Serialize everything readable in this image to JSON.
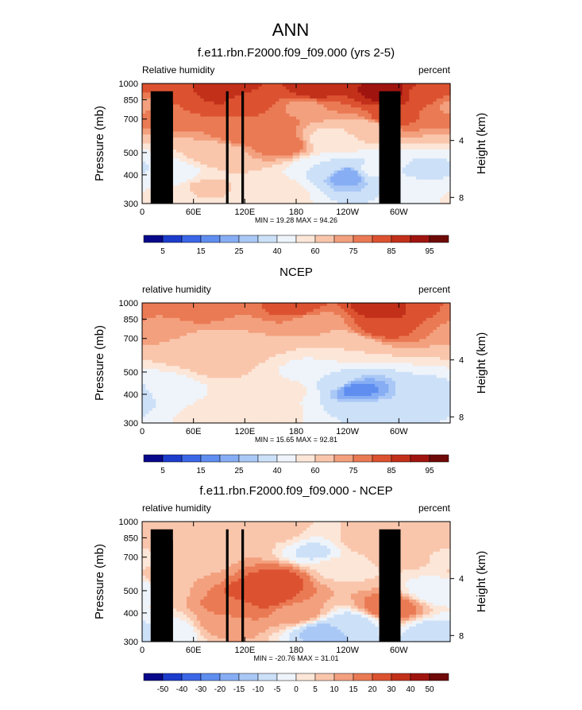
{
  "figure": {
    "title": "ANN"
  },
  "chart_data": [
    {
      "type": "heatmap",
      "title": "f.e11.rbn.F2000.f09_f09.000 (yrs 2-5)",
      "left_label": "Relative humidity",
      "right_label": "percent",
      "ylabel": "Pressure (mb)",
      "ylabel_right": "Height (km)",
      "stats_text": "MIN = 19.28  MAX = 94.26",
      "min": 19.28,
      "max": 94.26,
      "x_range": [
        0,
        360
      ],
      "y_range_mb": [
        1000,
        300
      ],
      "x_ticks": [
        {
          "lon": 0,
          "label": "0"
        },
        {
          "lon": 60,
          "label": "60E"
        },
        {
          "lon": 120,
          "label": "120E"
        },
        {
          "lon": 180,
          "label": "180"
        },
        {
          "lon": 240,
          "label": "120W"
        },
        {
          "lon": 300,
          "label": "60W"
        }
      ],
      "y_ticks": [
        {
          "p": 300,
          "label": "300"
        },
        {
          "p": 400,
          "label": "400"
        },
        {
          "p": 500,
          "label": "500"
        },
        {
          "p": 700,
          "label": "700"
        },
        {
          "p": 850,
          "label": "850"
        },
        {
          "p": 1000,
          "label": "1000"
        }
      ],
      "height_ticks": [
        {
          "km": 8,
          "label": "8"
        },
        {
          "km": 4,
          "label": "4"
        }
      ],
      "colorbar": {
        "levels": [
          5,
          10,
          15,
          20,
          25,
          30,
          40,
          50,
          60,
          70,
          75,
          80,
          85,
          90,
          95
        ],
        "labels": [
          "5",
          "15",
          "25",
          "40",
          "60",
          "75",
          "85",
          "95"
        ],
        "colors": [
          "#08088a",
          "#1c3ccc",
          "#3b66e6",
          "#5f8ef0",
          "#87aef4",
          "#aac8f6",
          "#cce0f8",
          "#eef4fa",
          "#fce6d8",
          "#f9c6ac",
          "#f3a07e",
          "#ea7a54",
          "#dc5230",
          "#c2301a",
          "#a01410",
          "#6e0a08"
        ]
      },
      "features": [
        {
          "lon": 240,
          "p": 400,
          "rh": 20
        },
        {
          "lon": 212,
          "p": 430,
          "rh": 40
        },
        {
          "lon": 268,
          "p": 420,
          "rh": 42
        },
        {
          "lon": 220,
          "p": 570,
          "rh": 55
        },
        {
          "lon": 340,
          "p": 420,
          "rh": 38
        },
        {
          "lon": 340,
          "p": 330,
          "rh": 50
        },
        {
          "lon": 35,
          "p": 400,
          "rh": 42
        },
        {
          "lon": 35,
          "p": 330,
          "rh": 52
        },
        {
          "lon": 155,
          "p": 340,
          "rh": 55
        },
        {
          "lon": 165,
          "p": 540,
          "rh": 80
        },
        {
          "lon": 145,
          "p": 640,
          "rh": 80
        },
        {
          "lon": 115,
          "p": 600,
          "rh": 78
        },
        {
          "lon": 30,
          "p": 770,
          "rh": 80
        },
        {
          "lon": 90,
          "p": 500,
          "rh": 66
        },
        {
          "lon": 70,
          "p": 350,
          "rh": 62
        },
        {
          "lon": 270,
          "p": 650,
          "rh": 66
        },
        {
          "lon": 285,
          "p": 700,
          "rh": 84
        },
        {
          "lon": 285,
          "p": 920,
          "rh": 92
        },
        {
          "lon": 200,
          "p": 930,
          "rh": 87
        },
        {
          "lon": 100,
          "p": 930,
          "rh": 88
        },
        {
          "lon": 45,
          "p": 920,
          "rh": 85
        },
        {
          "lon": 330,
          "p": 900,
          "rh": 84
        },
        {
          "lon": 120,
          "p": 860,
          "rh": 84
        },
        {
          "lon": 190,
          "p": 790,
          "rh": 74
        },
        {
          "lon": 5,
          "p": 800,
          "rh": 74
        }
      ],
      "terrain": [
        {
          "lon0": 10,
          "lon1": 36,
          "p": 925
        },
        {
          "lon0": 20,
          "lon1": 30,
          "p": 870
        },
        {
          "lon0": 28,
          "lon1": 36,
          "p": 830
        },
        {
          "lon0": 98,
          "lon1": 101,
          "p": 925
        },
        {
          "lon0": 116,
          "lon1": 119,
          "p": 925
        },
        {
          "lon0": 277,
          "lon1": 302,
          "p": 925
        }
      ]
    },
    {
      "type": "heatmap",
      "title": "NCEP",
      "left_label": "relative humidity",
      "right_label": "percent",
      "ylabel": "Pressure (mb)",
      "ylabel_right": "Height (km)",
      "stats_text": "MIN = 15.65  MAX = 92.81",
      "min": 15.65,
      "max": 92.81,
      "x_range": [
        0,
        360
      ],
      "y_range_mb": [
        1000,
        300
      ],
      "x_ticks": [
        {
          "lon": 0,
          "label": "0"
        },
        {
          "lon": 60,
          "label": "60E"
        },
        {
          "lon": 120,
          "label": "120E"
        },
        {
          "lon": 180,
          "label": "180"
        },
        {
          "lon": 240,
          "label": "120W"
        },
        {
          "lon": 300,
          "label": "60W"
        }
      ],
      "y_ticks": [
        {
          "p": 300,
          "label": "300"
        },
        {
          "p": 400,
          "label": "400"
        },
        {
          "p": 500,
          "label": "500"
        },
        {
          "p": 700,
          "label": "700"
        },
        {
          "p": 850,
          "label": "850"
        },
        {
          "p": 1000,
          "label": "1000"
        }
      ],
      "height_ticks": [
        {
          "km": 8,
          "label": "8"
        },
        {
          "km": 4,
          "label": "4"
        }
      ],
      "colorbar": {
        "levels": [
          5,
          10,
          15,
          20,
          25,
          30,
          40,
          50,
          60,
          70,
          75,
          80,
          85,
          90,
          95
        ],
        "labels": [
          "5",
          "15",
          "25",
          "40",
          "60",
          "75",
          "85",
          "95"
        ],
        "colors": [
          "#08088a",
          "#1c3ccc",
          "#3b66e6",
          "#5f8ef0",
          "#87aef4",
          "#aac8f6",
          "#cce0f8",
          "#eef4fa",
          "#fce6d8",
          "#f9c6ac",
          "#f3a07e",
          "#ea7a54",
          "#dc5230",
          "#c2301a",
          "#a01410",
          "#6e0a08"
        ]
      },
      "features": [
        {
          "lon": 250,
          "p": 420,
          "rh": 18
        },
        {
          "lon": 225,
          "p": 460,
          "rh": 36
        },
        {
          "lon": 255,
          "p": 330,
          "rh": 40
        },
        {
          "lon": 200,
          "p": 500,
          "rh": 48
        },
        {
          "lon": 170,
          "p": 420,
          "rh": 52
        },
        {
          "lon": 345,
          "p": 400,
          "rh": 35
        },
        {
          "lon": 30,
          "p": 420,
          "rh": 44
        },
        {
          "lon": 100,
          "p": 330,
          "rh": 58
        },
        {
          "lon": 140,
          "p": 340,
          "rh": 56
        },
        {
          "lon": 90,
          "p": 550,
          "rh": 64
        },
        {
          "lon": 60,
          "p": 640,
          "rh": 66
        },
        {
          "lon": 25,
          "p": 760,
          "rh": 72
        },
        {
          "lon": 120,
          "p": 700,
          "rh": 70
        },
        {
          "lon": 280,
          "p": 780,
          "rh": 82
        },
        {
          "lon": 285,
          "p": 950,
          "rh": 90
        },
        {
          "lon": 180,
          "p": 950,
          "rh": 82
        },
        {
          "lon": 60,
          "p": 960,
          "rh": 80
        },
        {
          "lon": 330,
          "p": 950,
          "rh": 80
        },
        {
          "lon": 200,
          "p": 820,
          "rh": 72
        },
        {
          "lon": 240,
          "p": 650,
          "rh": 60
        }
      ],
      "terrain": []
    },
    {
      "type": "heatmap",
      "title": "f.e11.rbn.F2000.f09_f09.000 - NCEP",
      "left_label": "relative humidity",
      "right_label": "percent",
      "ylabel": "Pressure (mb)",
      "ylabel_right": "Height (km)",
      "stats_text": "MIN = -20.76  MAX = 31.01",
      "min": -20.76,
      "max": 31.01,
      "x_range": [
        0,
        360
      ],
      "y_range_mb": [
        1000,
        300
      ],
      "x_ticks": [
        {
          "lon": 0,
          "label": "0"
        },
        {
          "lon": 60,
          "label": "60E"
        },
        {
          "lon": 120,
          "label": "120E"
        },
        {
          "lon": 180,
          "label": "180"
        },
        {
          "lon": 240,
          "label": "120W"
        },
        {
          "lon": 300,
          "label": "60W"
        }
      ],
      "y_ticks": [
        {
          "p": 300,
          "label": "300"
        },
        {
          "p": 400,
          "label": "400"
        },
        {
          "p": 500,
          "label": "500"
        },
        {
          "p": 700,
          "label": "700"
        },
        {
          "p": 850,
          "label": "850"
        },
        {
          "p": 1000,
          "label": "1000"
        }
      ],
      "height_ticks": [
        {
          "km": 8,
          "label": "8"
        },
        {
          "km": 4,
          "label": "4"
        }
      ],
      "colorbar": {
        "levels": [
          -50,
          -40,
          -30,
          -20,
          -15,
          -10,
          -5,
          0,
          5,
          10,
          15,
          20,
          30,
          40,
          50
        ],
        "labels": [
          "-50",
          "-40",
          "-30",
          "-20",
          "-15",
          "-10",
          "-5",
          "0",
          "5",
          "10",
          "15",
          "20",
          "30",
          "40",
          "50"
        ],
        "colors": [
          "#08088a",
          "#1c3ccc",
          "#3b66e6",
          "#5f8ef0",
          "#87aef4",
          "#aac8f6",
          "#cce0f8",
          "#eef4fa",
          "#fce6d8",
          "#f9c6ac",
          "#f3a07e",
          "#ea7a54",
          "#dc5230",
          "#c2301a",
          "#a01410",
          "#6e0a08"
        ]
      },
      "features": [
        {
          "lon": 140,
          "p": 480,
          "rh": 27
        },
        {
          "lon": 160,
          "p": 560,
          "rh": 22
        },
        {
          "lon": 110,
          "p": 420,
          "rh": 18
        },
        {
          "lon": 95,
          "p": 360,
          "rh": 12
        },
        {
          "lon": 180,
          "p": 400,
          "rh": 14
        },
        {
          "lon": 290,
          "p": 420,
          "rh": 20
        },
        {
          "lon": 212,
          "p": 330,
          "rh": -12
        },
        {
          "lon": 245,
          "p": 360,
          "rh": -8
        },
        {
          "lon": 340,
          "p": 330,
          "rh": -7
        },
        {
          "lon": 345,
          "p": 500,
          "rh": -4
        },
        {
          "lon": 30,
          "p": 330,
          "rh": -5
        },
        {
          "lon": 200,
          "p": 740,
          "rh": -6
        },
        {
          "lon": 230,
          "p": 620,
          "rh": 4
        },
        {
          "lon": 40,
          "p": 580,
          "rh": 10
        },
        {
          "lon": 70,
          "p": 700,
          "rh": 8
        },
        {
          "lon": 25,
          "p": 830,
          "rh": 10
        },
        {
          "lon": 255,
          "p": 820,
          "rh": 6
        },
        {
          "lon": 310,
          "p": 760,
          "rh": 9
        },
        {
          "lon": 110,
          "p": 800,
          "rh": 10
        },
        {
          "lon": 160,
          "p": 900,
          "rh": 6
        },
        {
          "lon": 330,
          "p": 950,
          "rh": 5
        },
        {
          "lon": 0,
          "p": 700,
          "rh": 4
        }
      ],
      "terrain": [
        {
          "lon0": 10,
          "lon1": 36,
          "p": 925
        },
        {
          "lon0": 20,
          "lon1": 30,
          "p": 870
        },
        {
          "lon0": 28,
          "lon1": 36,
          "p": 830
        },
        {
          "lon0": 98,
          "lon1": 101,
          "p": 925
        },
        {
          "lon0": 116,
          "lon1": 119,
          "p": 925
        },
        {
          "lon0": 277,
          "lon1": 302,
          "p": 925
        }
      ]
    }
  ]
}
